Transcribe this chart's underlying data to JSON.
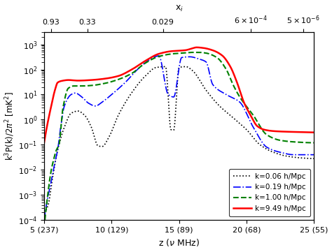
{
  "title": "",
  "xlabel": "z ($\\nu$ MHz)",
  "ylabel": "k$^3$P(k)/2$\\pi^2$ [mK$^2$]",
  "top_xlabel": "x$_i$",
  "xlim": [
    5,
    25
  ],
  "ylim": [
    0.0001,
    3000.0
  ],
  "xticks": [
    5,
    10,
    15,
    20,
    25
  ],
  "xtick_labels": [
    "5 (237)",
    "10 (129)",
    "15 (89)",
    "20 (68)",
    "25 (55)"
  ],
  "top_tick_positions": [
    5.5,
    8.2,
    13.8,
    20.3,
    24.2
  ],
  "top_tick_labels": [
    "0.93",
    "0.33",
    "0.029",
    "6x10$^{-4}$",
    "5x10$^{-6}$"
  ],
  "legend_labels": [
    "k=0.06 h/Mpc",
    "k=0.19 h/Mpc",
    "k=1.00 h/Mpc",
    "k=9.49 h/Mpc"
  ],
  "legend_styles": [
    {
      "color": "black",
      "linestyle": "dotted",
      "linewidth": 1.2
    },
    {
      "color": "blue",
      "linestyle": "dashdot",
      "linewidth": 1.2
    },
    {
      "color": "green",
      "linestyle": "dashed",
      "linewidth": 1.5
    },
    {
      "color": "red",
      "linestyle": "solid",
      "linewidth": 1.8
    }
  ],
  "k006": [
    [
      5.0,
      0.0002
    ],
    [
      5.3,
      0.0004
    ],
    [
      5.6,
      0.004
    ],
    [
      6.0,
      0.06
    ],
    [
      6.5,
      0.5
    ],
    [
      7.0,
      1.8
    ],
    [
      7.5,
      2.2
    ],
    [
      8.0,
      1.5
    ],
    [
      8.5,
      0.5
    ],
    [
      9.0,
      0.09
    ],
    [
      9.3,
      0.085
    ],
    [
      9.8,
      0.2
    ],
    [
      10.5,
      1.5
    ],
    [
      11.5,
      12.0
    ],
    [
      12.5,
      55.0
    ],
    [
      13.3,
      120.0
    ],
    [
      14.0,
      130.0
    ],
    [
      14.4,
      0.4
    ],
    [
      14.6,
      0.38
    ],
    [
      15.0,
      120.0
    ],
    [
      15.5,
      130.0
    ],
    [
      16.0,
      90.0
    ],
    [
      17.0,
      15.0
    ],
    [
      18.0,
      3.5
    ],
    [
      19.0,
      1.2
    ],
    [
      20.0,
      0.4
    ],
    [
      21.0,
      0.1
    ],
    [
      22.0,
      0.05
    ],
    [
      23.0,
      0.035
    ],
    [
      24.0,
      0.03
    ],
    [
      25.0,
      0.028
    ]
  ],
  "k019": [
    [
      5.0,
      0.0001
    ],
    [
      5.2,
      0.0005
    ],
    [
      5.5,
      0.003
    ],
    [
      5.8,
      0.02
    ],
    [
      6.0,
      0.06
    ],
    [
      6.2,
      0.4
    ],
    [
      6.5,
      3.5
    ],
    [
      7.0,
      10.0
    ],
    [
      7.3,
      11.5
    ],
    [
      7.8,
      8.0
    ],
    [
      8.3,
      4.5
    ],
    [
      8.8,
      3.5
    ],
    [
      9.3,
      5.0
    ],
    [
      10.0,
      10.0
    ],
    [
      11.0,
      30.0
    ],
    [
      12.0,
      110.0
    ],
    [
      13.0,
      280.0
    ],
    [
      13.5,
      350.0
    ],
    [
      14.2,
      10.0
    ],
    [
      14.6,
      8.0
    ],
    [
      15.2,
      300.0
    ],
    [
      15.8,
      320.0
    ],
    [
      16.5,
      260.0
    ],
    [
      17.0,
      200.0
    ],
    [
      17.5,
      25.0
    ],
    [
      18.5,
      10.0
    ],
    [
      19.5,
      5.0
    ],
    [
      20.5,
      0.5
    ],
    [
      21.5,
      0.08
    ],
    [
      22.5,
      0.05
    ],
    [
      23.5,
      0.04
    ],
    [
      25.0,
      0.04
    ]
  ],
  "k100": [
    [
      5.0,
      5e-05
    ],
    [
      5.2,
      0.0005
    ],
    [
      5.5,
      0.008
    ],
    [
      5.7,
      0.025
    ],
    [
      5.9,
      0.06
    ],
    [
      6.1,
      0.1
    ],
    [
      6.4,
      3.0
    ],
    [
      6.8,
      18.0
    ],
    [
      7.2,
      22.0
    ],
    [
      7.8,
      22.0
    ],
    [
      8.5,
      23.0
    ],
    [
      9.5,
      28.0
    ],
    [
      10.5,
      40.0
    ],
    [
      11.5,
      70.0
    ],
    [
      12.5,
      180.0
    ],
    [
      13.5,
      330.0
    ],
    [
      14.5,
      420.0
    ],
    [
      15.5,
      460.0
    ],
    [
      16.0,
      480.0
    ],
    [
      16.5,
      480.0
    ],
    [
      17.0,
      450.0
    ],
    [
      17.8,
      300.0
    ],
    [
      18.5,
      100.0
    ],
    [
      19.0,
      25.0
    ],
    [
      19.5,
      8.0
    ],
    [
      20.5,
      1.5
    ],
    [
      21.5,
      0.25
    ],
    [
      22.5,
      0.15
    ],
    [
      23.5,
      0.13
    ],
    [
      25.0,
      0.12
    ]
  ],
  "k949": [
    [
      5.0,
      0.12
    ],
    [
      5.2,
      0.5
    ],
    [
      5.5,
      3.0
    ],
    [
      5.8,
      15.0
    ],
    [
      6.0,
      30.0
    ],
    [
      6.3,
      35.0
    ],
    [
      6.8,
      38.0
    ],
    [
      7.5,
      36.0
    ],
    [
      8.5,
      38.0
    ],
    [
      9.5,
      43.0
    ],
    [
      10.5,
      55.0
    ],
    [
      11.5,
      100.0
    ],
    [
      12.5,
      220.0
    ],
    [
      13.5,
      420.0
    ],
    [
      14.5,
      540.0
    ],
    [
      15.0,
      560.0
    ],
    [
      15.5,
      590.0
    ],
    [
      16.0,
      700.0
    ],
    [
      16.3,
      760.0
    ],
    [
      16.8,
      720.0
    ],
    [
      17.5,
      580.0
    ],
    [
      18.2,
      360.0
    ],
    [
      18.8,
      130.0
    ],
    [
      19.3,
      30.0
    ],
    [
      19.8,
      5.0
    ],
    [
      20.3,
      1.5
    ],
    [
      20.8,
      0.55
    ],
    [
      21.3,
      0.4
    ],
    [
      22.0,
      0.35
    ],
    [
      23.0,
      0.33
    ],
    [
      24.0,
      0.32
    ],
    [
      25.0,
      0.31
    ]
  ],
  "background_color": "white"
}
